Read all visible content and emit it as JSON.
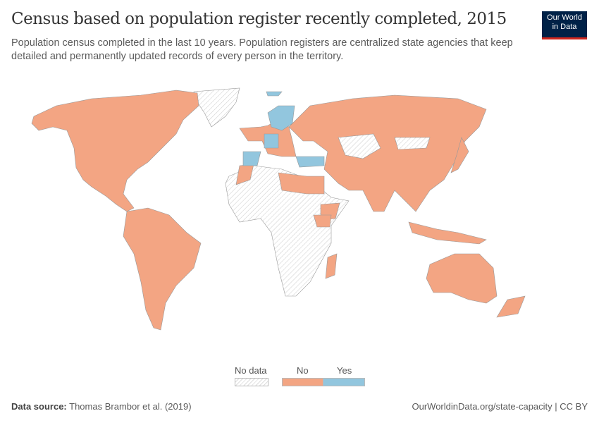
{
  "header": {
    "title": "Census based on population register recently completed, 2015",
    "subtitle": "Population census completed in the last 10 years. Population registers are centralized state agencies that keep detailed and permanently updated records of every person in the territory.",
    "logo_line1": "Our World",
    "logo_line2": "in Data"
  },
  "colors": {
    "no": "#f3a583",
    "yes": "#92c6de",
    "no_data": "hatched-grey"
  },
  "legend": {
    "no_data": "No data",
    "no": "No",
    "yes": "Yes"
  },
  "footer": {
    "source_label": "Data source:",
    "source": "Thomas Brambor et al. (2019)",
    "link": "OurWorldinData.org/state-capacity | CC BY"
  }
}
